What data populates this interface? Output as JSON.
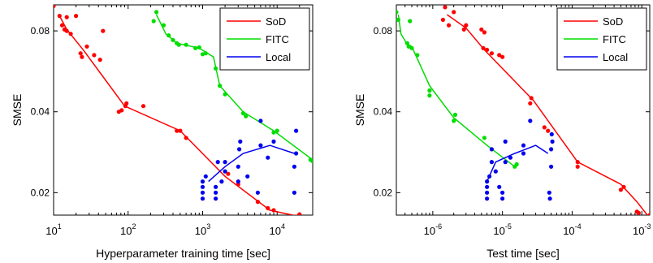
{
  "chart_data": [
    {
      "type": "scatter",
      "xscale": "log",
      "yscale": "log",
      "xlim": [
        10,
        30000
      ],
      "ylim": [
        0.0165,
        0.1
      ],
      "xlabel": "Hyperparameter training time [sec]",
      "ylabel": "SMSE",
      "xticks": [
        {
          "value": 10,
          "base": "10",
          "exp": "1"
        },
        {
          "value": 100,
          "base": "10",
          "exp": "2"
        },
        {
          "value": 1000,
          "base": "10",
          "exp": "3"
        },
        {
          "value": 10000,
          "base": "10",
          "exp": "4"
        }
      ],
      "yticks": [
        {
          "value": 0.02,
          "label": "0.02"
        },
        {
          "value": 0.04,
          "label": "0.04"
        },
        {
          "value": 0.08,
          "label": "0.08"
        }
      ],
      "legend": {
        "position": "top-right",
        "entries": [
          "SoD",
          "FITC",
          "Local"
        ]
      },
      "series": [
        {
          "name": "SoD",
          "color": "#ff0000",
          "line": [
            [
              12,
              0.091
            ],
            [
              15,
              0.081
            ],
            [
              25,
              0.068
            ],
            [
              90,
              0.042
            ],
            [
              500,
              0.034
            ],
            [
              2000,
              0.023
            ],
            [
              8000,
              0.0172
            ],
            [
              20000,
              0.0163
            ]
          ],
          "points": [
            [
              10,
              0.099
            ],
            [
              12,
              0.091
            ],
            [
              13,
              0.084
            ],
            [
              14,
              0.081
            ],
            [
              15,
              0.08
            ],
            [
              17,
              0.078
            ],
            [
              15,
              0.09
            ],
            [
              20,
              0.091
            ],
            [
              28,
              0.07
            ],
            [
              23,
              0.066
            ],
            [
              24,
              0.064
            ],
            [
              35,
              0.065
            ],
            [
              42,
              0.0625
            ],
            [
              46,
              0.08
            ],
            [
              75,
              0.04
            ],
            [
              82,
              0.0405
            ],
            [
              92,
              0.042
            ],
            [
              95,
              0.043
            ],
            [
              160,
              0.042
            ],
            [
              450,
              0.034
            ],
            [
              500,
              0.034
            ],
            [
              600,
              0.032
            ],
            [
              2200,
              0.0235
            ],
            [
              3000,
              0.0215
            ],
            [
              5500,
              0.0185
            ],
            [
              7500,
              0.0175
            ],
            [
              9000,
              0.0172
            ],
            [
              18000,
              0.0163
            ],
            [
              22000,
              0.0161
            ],
            [
              20000,
              0.0166
            ]
          ]
        },
        {
          "name": "FITC",
          "color": "#00dd00",
          "line": [
            [
              240,
              0.092
            ],
            [
              320,
              0.078
            ],
            [
              450,
              0.072
            ],
            [
              900,
              0.069
            ],
            [
              1400,
              0.064
            ],
            [
              1700,
              0.05
            ],
            [
              3500,
              0.04
            ],
            [
              9000,
              0.034
            ],
            [
              30000,
              0.0265
            ]
          ],
          "points": [
            [
              240,
              0.094
            ],
            [
              220,
              0.087
            ],
            [
              300,
              0.084
            ],
            [
              350,
              0.077
            ],
            [
              400,
              0.074
            ],
            [
              450,
              0.072
            ],
            [
              480,
              0.071
            ],
            [
              600,
              0.071
            ],
            [
              800,
              0.069
            ],
            [
              900,
              0.0695
            ],
            [
              1000,
              0.0655
            ],
            [
              1100,
              0.066
            ],
            [
              1500,
              0.058
            ],
            [
              1700,
              0.05
            ],
            [
              2000,
              0.0465
            ],
            [
              3500,
              0.0395
            ],
            [
              3800,
              0.0385
            ],
            [
              9000,
              0.0335
            ],
            [
              10000,
              0.034
            ],
            [
              28000,
              0.0265
            ],
            [
              30000,
              0.0262
            ]
          ]
        },
        {
          "name": "Local",
          "color": "#0000ee",
          "line": [
            [
              1200,
              0.022
            ],
            [
              2000,
              0.025
            ],
            [
              3500,
              0.028
            ],
            [
              8000,
              0.03
            ],
            [
              17000,
              0.028
            ]
          ],
          "points": [
            [
              1000,
              0.02
            ],
            [
              1000,
              0.021
            ],
            [
              1000,
              0.022
            ],
            [
              1000,
              0.019
            ],
            [
              1100,
              0.023
            ],
            [
              1500,
              0.019
            ],
            [
              1500,
              0.02
            ],
            [
              1500,
              0.021
            ],
            [
              1600,
              0.026
            ],
            [
              1800,
              0.022
            ],
            [
              2000,
              0.024
            ],
            [
              2000,
              0.026
            ],
            [
              3000,
              0.022
            ],
            [
              3000,
              0.025
            ],
            [
              3100,
              0.029
            ],
            [
              3200,
              0.031
            ],
            [
              4000,
              0.023
            ],
            [
              5500,
              0.02
            ],
            [
              6000,
              0.03
            ],
            [
              6000,
              0.037
            ],
            [
              7500,
              0.027
            ],
            [
              9000,
              0.031
            ],
            [
              17000,
              0.02
            ],
            [
              17000,
              0.025
            ],
            [
              18000,
              0.028
            ],
            [
              18000,
              0.034
            ]
          ]
        }
      ]
    },
    {
      "type": "scatter",
      "xscale": "log",
      "yscale": "log",
      "xlim": [
        3e-07,
        0.0013
      ],
      "ylim": [
        0.0165,
        0.1
      ],
      "xlabel": "Test time [sec]",
      "ylabel": "SMSE",
      "xticks": [
        {
          "value": 1e-06,
          "base": "10",
          "exp": "-6"
        },
        {
          "value": 1e-05,
          "base": "10",
          "exp": "-5"
        },
        {
          "value": 0.0001,
          "base": "10",
          "exp": "-4"
        },
        {
          "value": 0.001,
          "base": "10",
          "exp": "-3"
        }
      ],
      "yticks": [
        {
          "value": 0.02,
          "label": "0.02"
        },
        {
          "value": 0.04,
          "label": "0.04"
        },
        {
          "value": 0.08,
          "label": "0.08"
        }
      ],
      "legend": {
        "position": "top-right",
        "entries": [
          "SoD",
          "FITC",
          "Local"
        ]
      },
      "series": [
        {
          "name": "SoD",
          "color": "#ff0000",
          "line": [
            [
              1.6e-06,
              0.092
            ],
            [
              3e-06,
              0.082
            ],
            [
              5.5e-06,
              0.068
            ],
            [
              2.8e-05,
              0.044
            ],
            [
              0.00012,
              0.026
            ],
            [
              0.0005,
              0.0215
            ],
            [
              0.00085,
              0.0185
            ],
            [
              0.0012,
              0.0165
            ]
          ],
          "points": [
            [
              1.5e-06,
              0.098
            ],
            [
              2e-06,
              0.094
            ],
            [
              1.4e-06,
              0.088
            ],
            [
              1.7e-06,
              0.084
            ],
            [
              2.8e-06,
              0.081
            ],
            [
              3e-06,
              0.084
            ],
            [
              5e-06,
              0.081
            ],
            [
              5.5e-06,
              0.079
            ],
            [
              5.3e-06,
              0.069
            ],
            [
              6e-06,
              0.068
            ],
            [
              7e-06,
              0.066
            ],
            [
              9e-06,
              0.065
            ],
            [
              1e-05,
              0.064
            ],
            [
              2.5e-05,
              0.043
            ],
            [
              2.6e-05,
              0.045
            ],
            [
              4e-05,
              0.035
            ],
            [
              4.5e-05,
              0.034
            ],
            [
              0.00012,
              0.026
            ],
            [
              0.00012,
              0.025
            ],
            [
              0.0005,
              0.0205
            ],
            [
              0.00055,
              0.021
            ],
            [
              0.00085,
              0.017
            ],
            [
              0.0009,
              0.0168
            ],
            [
              0.0013,
              0.0165
            ]
          ]
        },
        {
          "name": "FITC",
          "color": "#00dd00",
          "line": [
            [
              3.2e-07,
              0.092
            ],
            [
              3.5e-07,
              0.078
            ],
            [
              4.2e-07,
              0.072
            ],
            [
              5e-07,
              0.07
            ],
            [
              9e-07,
              0.05
            ],
            [
              2e-06,
              0.038
            ],
            [
              6e-06,
              0.03
            ],
            [
              1.5e-05,
              0.025
            ]
          ],
          "points": [
            [
              3e-07,
              0.094
            ],
            [
              3.2e-07,
              0.088
            ],
            [
              4.7e-07,
              0.087
            ],
            [
              4.3e-07,
              0.072
            ],
            [
              4.5e-07,
              0.07
            ],
            [
              5e-07,
              0.069
            ],
            [
              6e-07,
              0.065
            ],
            [
              9e-07,
              0.048
            ],
            [
              9e-07,
              0.046
            ],
            [
              2e-06,
              0.037
            ],
            [
              2.1e-06,
              0.039
            ],
            [
              5.5e-06,
              0.032
            ],
            [
              1.5e-05,
              0.025
            ],
            [
              1.6e-05,
              0.0255
            ]
          ]
        },
        {
          "name": "Local",
          "color": "#0000ee",
          "line": [
            [
              6e-06,
              0.022
            ],
            [
              8e-06,
              0.026
            ],
            [
              1.5e-05,
              0.028
            ],
            [
              3e-05,
              0.03
            ],
            [
              4.5e-05,
              0.028
            ]
          ],
          "points": [
            [
              6e-06,
              0.019
            ],
            [
              6e-06,
              0.02
            ],
            [
              6e-06,
              0.021
            ],
            [
              6e-06,
              0.022
            ],
            [
              6.5e-06,
              0.023
            ],
            [
              7e-06,
              0.026
            ],
            [
              7e-06,
              0.029
            ],
            [
              8e-06,
              0.024
            ],
            [
              9e-06,
              0.021
            ],
            [
              1e-05,
              0.019
            ],
            [
              1e-05,
              0.02
            ],
            [
              1.1e-05,
              0.026
            ],
            [
              1.1e-05,
              0.031
            ],
            [
              1.3e-05,
              0.027
            ],
            [
              2e-05,
              0.028
            ],
            [
              2e-05,
              0.03
            ],
            [
              2.5e-05,
              0.037
            ],
            [
              4.7e-05,
              0.02
            ],
            [
              4.8e-05,
              0.019
            ],
            [
              5e-05,
              0.025
            ],
            [
              5e-05,
              0.029
            ],
            [
              5.2e-05,
              0.031
            ],
            [
              5.1e-05,
              0.033
            ]
          ]
        }
      ]
    }
  ]
}
